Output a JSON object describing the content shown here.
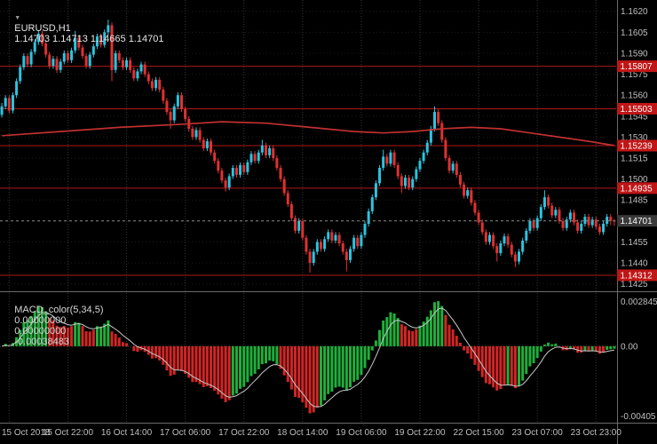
{
  "header": {
    "marker": "▼",
    "symbol": "EURUSD,H1",
    "ohlc": "1.14703 1.14713 1.14665 1.14701"
  },
  "macd_header": {
    "name": "MACD_color(5,34,5)",
    "values": [
      "0.00000000",
      "0.00000000",
      "-0.00038483"
    ]
  },
  "price_axis": {
    "labels": [
      "1.1620",
      "1.1605",
      "1.1590",
      "1.1575",
      "1.1560",
      "1.1545",
      "1.1530",
      "1.1515",
      "1.1500",
      "1.1485",
      "1.1470",
      "1.1455",
      "1.1440",
      "1.1425"
    ]
  },
  "macd_axis": {
    "top": "0.002845",
    "zero": "0.00",
    "bottom": "-0.00405"
  },
  "colors": {
    "bull": "#2bc4e0",
    "bear": "#e03131",
    "ma": "#c03030",
    "level": "#b01818",
    "badge": "#c01616",
    "current_badge": "#3a3a3a",
    "hist_up": "#1faf3c",
    "hist_down": "#d32525",
    "signal": "#c8c8c8",
    "grid_v": "#353535",
    "grid_h": "#1e1e1e",
    "text": "#bfbfbf",
    "separator": "#6b6b6b"
  },
  "chart_data": {
    "type": "candlestick",
    "symbol": "EURUSD",
    "timeframe": "H1",
    "title": "EURUSD,H1",
    "price_min": 1.1421,
    "price_max": 1.1623,
    "grid": "on",
    "levels": [
      {
        "value": 1.15807,
        "label": "1.15807"
      },
      {
        "value": 1.15503,
        "label": "1.15503"
      },
      {
        "value": 1.15239,
        "label": "1.15239"
      },
      {
        "value": 1.14935,
        "label": "1.14935"
      },
      {
        "value": 1.14312,
        "label": "1.14312"
      }
    ],
    "current_price": {
      "value": 1.14701,
      "label": "1.14701"
    },
    "x_labels": [
      [
        "15 Oct 2018",
        2
      ],
      [
        "15 Oct 22:00",
        18
      ],
      [
        "16 Oct 14:00",
        34
      ],
      [
        "17 Oct 06:00",
        50
      ],
      [
        "17 Oct 22:00",
        66
      ],
      [
        "18 Oct 14:00",
        82
      ],
      [
        "19 Oct 06:00",
        98
      ],
      [
        "19 Oct 22:00",
        114
      ],
      [
        "22 Oct 15:00",
        130
      ],
      [
        "23 Oct 07:00",
        146
      ],
      [
        "23 Oct 23:00",
        162
      ]
    ],
    "ma": {
      "points": [
        [
          0,
          1.1531
        ],
        [
          16,
          1.1534
        ],
        [
          32,
          1.1537
        ],
        [
          48,
          1.1539
        ],
        [
          60,
          1.1541
        ],
        [
          72,
          1.154
        ],
        [
          84,
          1.1537
        ],
        [
          96,
          1.1534
        ],
        [
          104,
          1.1533
        ],
        [
          112,
          1.1534
        ],
        [
          120,
          1.1536
        ],
        [
          128,
          1.1537
        ],
        [
          136,
          1.1536
        ],
        [
          144,
          1.1533
        ],
        [
          152,
          1.153
        ],
        [
          160,
          1.1527
        ],
        [
          167,
          1.1524
        ]
      ]
    },
    "indicator": {
      "name": "MACD_color",
      "fast": 5,
      "slow": 34,
      "signal": 5
    },
    "candles": [
      [
        1.1546,
        1.15545,
        1.1544,
        1.1552
      ],
      [
        1.1552,
        1.156,
        1.155,
        1.1558
      ],
      [
        1.1558,
        1.156,
        1.1547,
        1.1549
      ],
      [
        1.1549,
        1.1562,
        1.1547,
        1.156
      ],
      [
        1.156,
        1.1572,
        1.1558,
        1.157
      ],
      [
        1.157,
        1.1582,
        1.1568,
        1.158
      ],
      [
        1.158,
        1.159,
        1.1578,
        1.1588
      ],
      [
        1.1588,
        1.159,
        1.158,
        1.1582
      ],
      [
        1.1582,
        1.1593,
        1.158,
        1.1591
      ],
      [
        1.1591,
        1.16,
        1.1589,
        1.1598
      ],
      [
        1.1598,
        1.1606,
        1.1596,
        1.1604
      ],
      [
        1.1604,
        1.1606,
        1.1595,
        1.1597
      ],
      [
        1.1597,
        1.1599,
        1.1587,
        1.1589
      ],
      [
        1.1589,
        1.1591,
        1.1579,
        1.1581
      ],
      [
        1.1581,
        1.1588,
        1.1579,
        1.1586
      ],
      [
        1.1586,
        1.1588,
        1.1576,
        1.1578
      ],
      [
        1.1578,
        1.1586,
        1.1576,
        1.1584
      ],
      [
        1.1584,
        1.1592,
        1.1582,
        1.159
      ],
      [
        1.159,
        1.1592,
        1.1583,
        1.1585
      ],
      [
        1.1585,
        1.1594,
        1.1583,
        1.1592
      ],
      [
        1.1592,
        1.1606,
        1.159,
        1.1601
      ],
      [
        1.1601,
        1.1603,
        1.1592,
        1.1594
      ],
      [
        1.1594,
        1.1596,
        1.1586,
        1.1588
      ],
      [
        1.1588,
        1.159,
        1.1579,
        1.1581
      ],
      [
        1.1581,
        1.1591,
        1.1579,
        1.1589
      ],
      [
        1.1589,
        1.1597,
        1.1587,
        1.1595
      ],
      [
        1.1595,
        1.1604,
        1.1593,
        1.1602
      ],
      [
        1.1602,
        1.1604,
        1.1594,
        1.1596
      ],
      [
        1.1596,
        1.1607,
        1.1594,
        1.1605
      ],
      [
        1.1605,
        1.1614,
        1.1603,
        1.161
      ],
      [
        1.161,
        1.1612,
        1.157,
        1.1578
      ],
      [
        1.1578,
        1.1592,
        1.1576,
        1.159
      ],
      [
        1.159,
        1.1592,
        1.1583,
        1.1585
      ],
      [
        1.1585,
        1.1587,
        1.1578,
        1.158
      ],
      [
        1.158,
        1.1587,
        1.1578,
        1.1585
      ],
      [
        1.1585,
        1.1587,
        1.1576,
        1.1578
      ],
      [
        1.1578,
        1.158,
        1.157,
        1.1572
      ],
      [
        1.1572,
        1.1579,
        1.157,
        1.1577
      ],
      [
        1.1577,
        1.1584,
        1.1575,
        1.1582
      ],
      [
        1.1582,
        1.1584,
        1.1573,
        1.1575
      ],
      [
        1.1575,
        1.1577,
        1.1568,
        1.157
      ],
      [
        1.157,
        1.1572,
        1.1563,
        1.1565
      ],
      [
        1.1565,
        1.1573,
        1.1563,
        1.1571
      ],
      [
        1.1571,
        1.1573,
        1.1562,
        1.1564
      ],
      [
        1.1564,
        1.1566,
        1.1554,
        1.1556
      ],
      [
        1.1556,
        1.1558,
        1.1546,
        1.1548
      ],
      [
        1.1548,
        1.155,
        1.1536,
        1.1542
      ],
      [
        1.1542,
        1.1554,
        1.154,
        1.1552
      ],
      [
        1.1552,
        1.1562,
        1.155,
        1.156
      ],
      [
        1.156,
        1.1562,
        1.1548,
        1.155
      ],
      [
        1.155,
        1.1552,
        1.1541,
        1.1543
      ],
      [
        1.1543,
        1.1545,
        1.1534,
        1.1536
      ],
      [
        1.1536,
        1.1538,
        1.1528,
        1.153
      ],
      [
        1.153,
        1.1537,
        1.1528,
        1.1535
      ],
      [
        1.1535,
        1.1537,
        1.1526,
        1.1528
      ],
      [
        1.1528,
        1.153,
        1.152,
        1.1522
      ],
      [
        1.1522,
        1.1529,
        1.152,
        1.1527
      ],
      [
        1.1527,
        1.1529,
        1.1517,
        1.1519
      ],
      [
        1.1519,
        1.1521,
        1.1511,
        1.1513
      ],
      [
        1.1513,
        1.1515,
        1.1504,
        1.1506
      ],
      [
        1.1506,
        1.1508,
        1.1497,
        1.1499
      ],
      [
        1.1499,
        1.1501,
        1.1491,
        1.1494
      ],
      [
        1.1494,
        1.1504,
        1.1492,
        1.1502
      ],
      [
        1.1502,
        1.151,
        1.15,
        1.1508
      ],
      [
        1.1508,
        1.151,
        1.1501,
        1.1503
      ],
      [
        1.1503,
        1.1512,
        1.1501,
        1.151
      ],
      [
        1.151,
        1.1512,
        1.1503,
        1.1505
      ],
      [
        1.1505,
        1.1514,
        1.1503,
        1.1512
      ],
      [
        1.1512,
        1.152,
        1.151,
        1.1518
      ],
      [
        1.1518,
        1.152,
        1.1511,
        1.1513
      ],
      [
        1.1513,
        1.1521,
        1.1511,
        1.1519
      ],
      [
        1.1519,
        1.1528,
        1.1517,
        1.1524
      ],
      [
        1.1524,
        1.1526,
        1.1515,
        1.1517
      ],
      [
        1.1517,
        1.1524,
        1.1515,
        1.1522
      ],
      [
        1.1522,
        1.1524,
        1.1513,
        1.1515
      ],
      [
        1.1515,
        1.1517,
        1.1506,
        1.1508
      ],
      [
        1.1508,
        1.151,
        1.1498,
        1.15
      ],
      [
        1.15,
        1.1502,
        1.1488,
        1.149
      ],
      [
        1.149,
        1.1492,
        1.148,
        1.1482
      ],
      [
        1.1482,
        1.1484,
        1.147,
        1.1472
      ],
      [
        1.1472,
        1.1474,
        1.1461,
        1.1463
      ],
      [
        1.1463,
        1.1472,
        1.1461,
        1.147
      ],
      [
        1.147,
        1.1472,
        1.1456,
        1.1458
      ],
      [
        1.1458,
        1.146,
        1.1446,
        1.1448
      ],
      [
        1.1448,
        1.145,
        1.1433,
        1.144
      ],
      [
        1.144,
        1.145,
        1.1438,
        1.1448
      ],
      [
        1.1448,
        1.1457,
        1.1446,
        1.1455
      ],
      [
        1.1455,
        1.1457,
        1.1448,
        1.145
      ],
      [
        1.145,
        1.1459,
        1.1448,
        1.1457
      ],
      [
        1.1457,
        1.1464,
        1.1455,
        1.1462
      ],
      [
        1.1462,
        1.1464,
        1.1454,
        1.1456
      ],
      [
        1.1456,
        1.1462,
        1.1454,
        1.146
      ],
      [
        1.146,
        1.1462,
        1.1452,
        1.1454
      ],
      [
        1.1454,
        1.1456,
        1.1446,
        1.1448
      ],
      [
        1.1448,
        1.145,
        1.1434,
        1.1442
      ],
      [
        1.1442,
        1.1452,
        1.144,
        1.145
      ],
      [
        1.145,
        1.146,
        1.1448,
        1.1458
      ],
      [
        1.1458,
        1.146,
        1.145,
        1.1452
      ],
      [
        1.1452,
        1.1462,
        1.145,
        1.146
      ],
      [
        1.146,
        1.147,
        1.1458,
        1.1468
      ],
      [
        1.1468,
        1.1479,
        1.1466,
        1.1477
      ],
      [
        1.1477,
        1.1489,
        1.1475,
        1.1487
      ],
      [
        1.1487,
        1.1499,
        1.1485,
        1.1497
      ],
      [
        1.1497,
        1.151,
        1.1495,
        1.1508
      ],
      [
        1.1508,
        1.1521,
        1.1506,
        1.1516
      ],
      [
        1.1516,
        1.1518,
        1.1509,
        1.1511
      ],
      [
        1.1511,
        1.1521,
        1.1509,
        1.1519
      ],
      [
        1.1519,
        1.1521,
        1.1508,
        1.151
      ],
      [
        1.151,
        1.1512,
        1.15,
        1.1502
      ],
      [
        1.1502,
        1.1504,
        1.149,
        1.1495
      ],
      [
        1.1495,
        1.1503,
        1.1493,
        1.1501
      ],
      [
        1.1501,
        1.1503,
        1.1492,
        1.1494
      ],
      [
        1.1494,
        1.1502,
        1.1492,
        1.15
      ],
      [
        1.15,
        1.1509,
        1.1498,
        1.1507
      ],
      [
        1.1507,
        1.1515,
        1.1505,
        1.1513
      ],
      [
        1.1513,
        1.1521,
        1.1511,
        1.1519
      ],
      [
        1.1519,
        1.1528,
        1.1517,
        1.1526
      ],
      [
        1.1526,
        1.1538,
        1.1524,
        1.1536
      ],
      [
        1.1536,
        1.1552,
        1.1534,
        1.1548
      ],
      [
        1.1548,
        1.155,
        1.1538,
        1.154
      ],
      [
        1.154,
        1.1542,
        1.1526,
        1.1528
      ],
      [
        1.1528,
        1.153,
        1.1513,
        1.1515
      ],
      [
        1.1515,
        1.1517,
        1.1504,
        1.1506
      ],
      [
        1.1506,
        1.1513,
        1.1504,
        1.1511
      ],
      [
        1.1511,
        1.1513,
        1.1501,
        1.1503
      ],
      [
        1.1503,
        1.1505,
        1.1494,
        1.1496
      ],
      [
        1.1496,
        1.1498,
        1.1486,
        1.1488
      ],
      [
        1.1488,
        1.1494,
        1.1486,
        1.1492
      ],
      [
        1.1492,
        1.1494,
        1.1481,
        1.1483
      ],
      [
        1.1483,
        1.1485,
        1.1474,
        1.1476
      ],
      [
        1.1476,
        1.1478,
        1.1467,
        1.1469
      ],
      [
        1.1469,
        1.1471,
        1.146,
        1.1462
      ],
      [
        1.1462,
        1.1464,
        1.1453,
        1.1455
      ],
      [
        1.1455,
        1.1462,
        1.1453,
        1.146
      ],
      [
        1.146,
        1.1462,
        1.145,
        1.1452
      ],
      [
        1.1452,
        1.1454,
        1.1441,
        1.1447
      ],
      [
        1.1447,
        1.1456,
        1.1445,
        1.1454
      ],
      [
        1.1454,
        1.1461,
        1.1452,
        1.1459
      ],
      [
        1.1459,
        1.1461,
        1.1451,
        1.1453
      ],
      [
        1.1453,
        1.1455,
        1.1444,
        1.1446
      ],
      [
        1.1446,
        1.1448,
        1.1437,
        1.1441
      ],
      [
        1.1441,
        1.145,
        1.1439,
        1.1448
      ],
      [
        1.1448,
        1.1458,
        1.1446,
        1.1456
      ],
      [
        1.1456,
        1.1465,
        1.1454,
        1.1463
      ],
      [
        1.1463,
        1.1472,
        1.1461,
        1.147
      ],
      [
        1.147,
        1.1472,
        1.1463,
        1.1465
      ],
      [
        1.1465,
        1.1474,
        1.1463,
        1.1472
      ],
      [
        1.1472,
        1.1482,
        1.147,
        1.148
      ],
      [
        1.148,
        1.1492,
        1.1478,
        1.1487
      ],
      [
        1.1487,
        1.1489,
        1.1479,
        1.1481
      ],
      [
        1.1481,
        1.1483,
        1.1472,
        1.1474
      ],
      [
        1.1474,
        1.148,
        1.1472,
        1.1478
      ],
      [
        1.1478,
        1.148,
        1.1468,
        1.147
      ],
      [
        1.147,
        1.1472,
        1.1463,
        1.1465
      ],
      [
        1.1465,
        1.1473,
        1.1463,
        1.1471
      ],
      [
        1.1471,
        1.1478,
        1.1469,
        1.1476
      ],
      [
        1.1476,
        1.1478,
        1.1467,
        1.1469
      ],
      [
        1.1469,
        1.1471,
        1.1461,
        1.1463
      ],
      [
        1.1463,
        1.147,
        1.1461,
        1.1468
      ],
      [
        1.1468,
        1.1475,
        1.1466,
        1.1473
      ],
      [
        1.1473,
        1.1475,
        1.1465,
        1.1467
      ],
      [
        1.1467,
        1.1473,
        1.1465,
        1.1471
      ],
      [
        1.1471,
        1.1473,
        1.1464,
        1.1466
      ],
      [
        1.1466,
        1.1468,
        1.146,
        1.1462
      ],
      [
        1.1462,
        1.147,
        1.146,
        1.1468
      ],
      [
        1.1468,
        1.1475,
        1.1466,
        1.1473
      ],
      [
        1.1473,
        1.1475,
        1.1467,
        1.147
      ],
      [
        1.14703,
        1.14713,
        1.14665,
        1.14701
      ]
    ]
  }
}
